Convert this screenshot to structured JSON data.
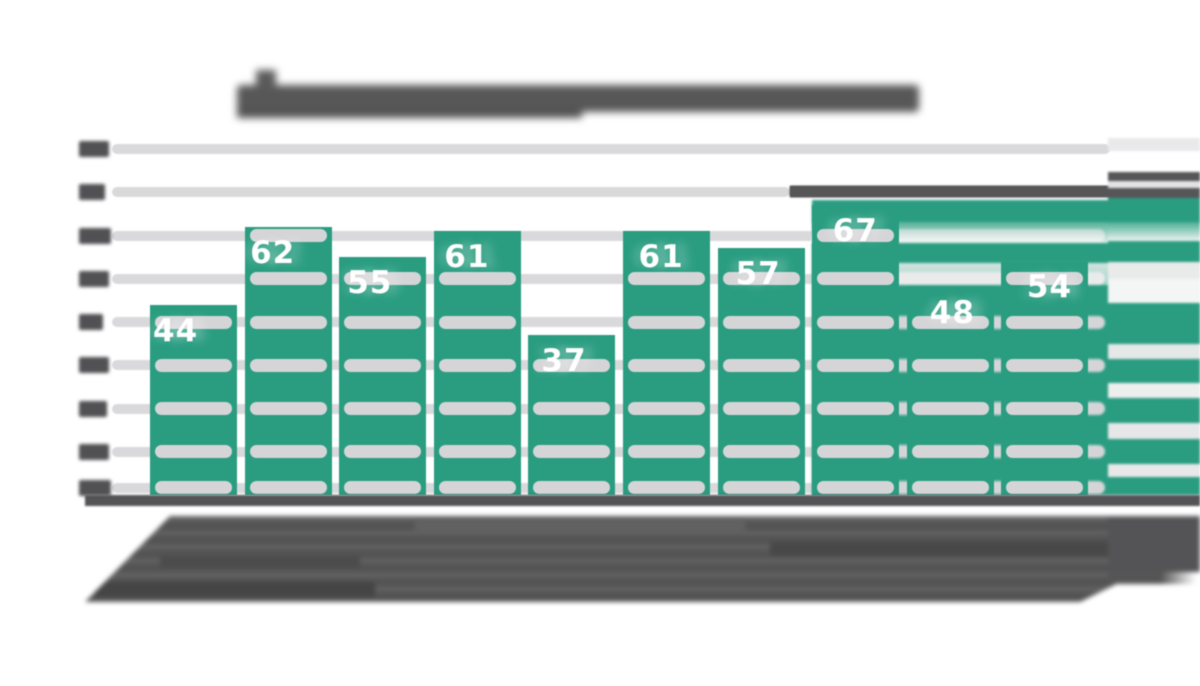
{
  "page": {
    "background": "#ffffff"
  },
  "chart_data": {
    "type": "bar",
    "title": "",
    "title_legibility": "title text is horizontally smeared and illegible in the source image",
    "categories": [
      "",
      "",
      "",
      "",
      "",
      "",
      "",
      "",
      "",
      ""
    ],
    "categories_legibility": "rotated x-axis labels are smeared into a dark illegible mass",
    "values": [
      44,
      62,
      55,
      61,
      37,
      61,
      57,
      67,
      48,
      54
    ],
    "data_labels": [
      "44",
      "62",
      "55",
      "61",
      "37",
      "61",
      "57",
      "67",
      "48",
      "54"
    ],
    "xlabel": "",
    "ylabel": "",
    "ylim": [
      0,
      80
    ],
    "y_step": 10,
    "y_tick_count": 9,
    "y_tick_labels_legibility": "y-axis tick labels are smeared into dark blobs, values inferred 0-80 step 10",
    "grid": true,
    "legend": false,
    "bar_label_position": "inside-top",
    "colors": {
      "bar": "#2a9d81",
      "bar_label_text": "#ffffff",
      "gridline": "#d9d9db",
      "gridline_over_bar": "#d5d5d8",
      "smeared_text": "#565658",
      "axis_line": "#545457",
      "background": "#ffffff"
    }
  }
}
